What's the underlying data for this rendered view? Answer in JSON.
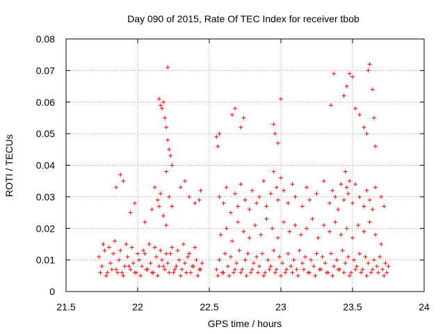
{
  "chart_data": {
    "type": "scatter",
    "title": "Day 090 of 2015, Rate Of TEC Index for receiver tbob",
    "xlabel": "GPS time / hours",
    "ylabel": "ROTI / TECUs",
    "xlim": [
      21.5,
      24
    ],
    "ylim": [
      0,
      0.08
    ],
    "x_ticks": [
      21.5,
      22,
      22.5,
      23,
      23.5,
      24
    ],
    "x_tick_labels": [
      "21.5",
      "22",
      "22.5",
      "23",
      "23.5",
      "24"
    ],
    "y_ticks": [
      0,
      0.01,
      0.02,
      0.03,
      0.04,
      0.05,
      0.06,
      0.07,
      0.08
    ],
    "y_tick_labels": [
      "0",
      "0.01",
      "0.02",
      "0.03",
      "0.04",
      "0.05",
      "0.06",
      "0.07",
      "0.08"
    ],
    "grid": true,
    "marker": "+",
    "marker_color": "#ff0000",
    "series": [
      {
        "name": "ROTI",
        "x": [
          21.73,
          21.75,
          21.77,
          21.79,
          21.81,
          21.83,
          21.85,
          21.87,
          21.89,
          21.91,
          21.93,
          21.95,
          21.97,
          21.99,
          22.01,
          22.03,
          22.05,
          22.07,
          22.09,
          22.11,
          22.13,
          22.15,
          22.17,
          22.19,
          22.21,
          22.23,
          22.25,
          22.27,
          22.29,
          22.31,
          22.33,
          22.35,
          22.37,
          22.39,
          22.41,
          22.43,
          22.45,
          21.74,
          21.78,
          21.82,
          21.86,
          21.9,
          21.94,
          21.98,
          22.02,
          22.06,
          22.1,
          22.14,
          22.18,
          22.22,
          22.26,
          22.3,
          22.34,
          22.38,
          22.42,
          22.44,
          21.76,
          21.8,
          21.84,
          21.88,
          21.92,
          21.96,
          22.0,
          22.04,
          22.08,
          22.12,
          22.16,
          22.2,
          22.24,
          22.28,
          22.32,
          22.36,
          22.4,
          21.85,
          21.88,
          21.9,
          21.95,
          21.98,
          22.05,
          22.1,
          22.12,
          22.14,
          22.15,
          22.16,
          22.18,
          22.2,
          22.22,
          22.24,
          22.3,
          22.33,
          22.36,
          22.4,
          22.43,
          22.44,
          22.15,
          22.16,
          22.17,
          22.18,
          22.19,
          22.2,
          22.21,
          22.22,
          22.23,
          22.24,
          22.2,
          22.21,
          22.55,
          22.57,
          22.59,
          22.61,
          22.63,
          22.65,
          22.67,
          22.69,
          22.71,
          22.73,
          22.75,
          22.77,
          22.79,
          22.81,
          22.83,
          22.85,
          22.87,
          22.89,
          22.91,
          22.93,
          22.95,
          22.97,
          22.99,
          23.01,
          23.03,
          23.05,
          23.07,
          23.09,
          23.11,
          23.13,
          23.15,
          23.17,
          23.19,
          23.21,
          23.23,
          23.25,
          23.27,
          23.29,
          23.31,
          23.33,
          23.35,
          23.37,
          23.39,
          23.41,
          23.43,
          23.45,
          23.47,
          23.49,
          23.51,
          23.53,
          23.55,
          23.57,
          23.59,
          23.61,
          23.63,
          23.65,
          23.67,
          23.69,
          23.71,
          23.73,
          23.75,
          22.56,
          22.6,
          22.64,
          22.68,
          22.72,
          22.76,
          22.8,
          22.84,
          22.88,
          22.92,
          22.96,
          23.0,
          23.04,
          23.08,
          23.12,
          23.16,
          23.2,
          23.24,
          23.28,
          23.32,
          23.36,
          23.4,
          23.44,
          23.48,
          23.52,
          23.56,
          23.6,
          23.64,
          23.68,
          23.72,
          23.74,
          22.58,
          22.62,
          22.66,
          22.7,
          22.74,
          22.78,
          22.82,
          22.86,
          22.9,
          22.94,
          22.98,
          23.02,
          23.06,
          23.1,
          23.14,
          23.18,
          23.22,
          23.26,
          23.3,
          23.34,
          23.38,
          23.42,
          23.46,
          23.5,
          23.54,
          23.58,
          23.62,
          23.66,
          23.7,
          22.57,
          22.6,
          22.62,
          22.65,
          22.68,
          22.7,
          22.72,
          22.75,
          22.78,
          22.8,
          22.83,
          22.85,
          22.88,
          22.9,
          22.93,
          22.95,
          22.97,
          22.98,
          23.0,
          23.02,
          23.05,
          23.08,
          23.1,
          23.15,
          23.18,
          23.2,
          23.25,
          23.3,
          23.34,
          23.36,
          23.38,
          23.4,
          23.42,
          23.44,
          23.45,
          23.46,
          23.47,
          23.48,
          23.5,
          23.52,
          23.55,
          23.58,
          23.6,
          23.62,
          23.64,
          23.66,
          23.7,
          23.72,
          22.55,
          22.56,
          22.57,
          22.66,
          22.68,
          22.72,
          22.74,
          22.95,
          22.96,
          22.98,
          23.0,
          23.35,
          23.37,
          23.44,
          23.46,
          23.48,
          23.5,
          23.52,
          23.55,
          23.58,
          23.6,
          23.61,
          23.62,
          23.64,
          23.65,
          23.66
        ],
        "y": [
          0.011,
          0.008,
          0.013,
          0.006,
          0.009,
          0.012,
          0.007,
          0.01,
          0.006,
          0.008,
          0.011,
          0.007,
          0.009,
          0.006,
          0.01,
          0.008,
          0.012,
          0.007,
          0.009,
          0.006,
          0.011,
          0.008,
          0.01,
          0.007,
          0.009,
          0.012,
          0.006,
          0.008,
          0.01,
          0.007,
          0.009,
          0.011,
          0.006,
          0.008,
          0.01,
          0.007,
          0.009,
          0.006,
          0.005,
          0.007,
          0.006,
          0.005,
          0.008,
          0.006,
          0.005,
          0.007,
          0.006,
          0.005,
          0.008,
          0.006,
          0.007,
          0.005,
          0.006,
          0.008,
          0.005,
          0.007,
          0.015,
          0.014,
          0.016,
          0.013,
          0.015,
          0.014,
          0.012,
          0.013,
          0.015,
          0.014,
          0.013,
          0.012,
          0.014,
          0.013,
          0.015,
          0.012,
          0.014,
          0.033,
          0.037,
          0.035,
          0.025,
          0.028,
          0.022,
          0.026,
          0.033,
          0.029,
          0.027,
          0.031,
          0.024,
          0.021,
          0.03,
          0.027,
          0.033,
          0.035,
          0.03,
          0.028,
          0.029,
          0.032,
          0.061,
          0.059,
          0.058,
          0.06,
          0.055,
          0.052,
          0.048,
          0.045,
          0.043,
          0.04,
          0.038,
          0.071,
          0.007,
          0.01,
          0.006,
          0.012,
          0.008,
          0.011,
          0.006,
          0.009,
          0.013,
          0.007,
          0.01,
          0.012,
          0.006,
          0.009,
          0.011,
          0.008,
          0.012,
          0.006,
          0.01,
          0.008,
          0.013,
          0.007,
          0.011,
          0.009,
          0.006,
          0.012,
          0.008,
          0.01,
          0.007,
          0.013,
          0.009,
          0.011,
          0.006,
          0.01,
          0.008,
          0.012,
          0.007,
          0.011,
          0.009,
          0.006,
          0.012,
          0.008,
          0.01,
          0.007,
          0.013,
          0.009,
          0.011,
          0.006,
          0.01,
          0.008,
          0.012,
          0.007,
          0.011,
          0.009,
          0.006,
          0.01,
          0.008,
          0.011,
          0.007,
          0.009,
          0.008,
          0.005,
          0.006,
          0.005,
          0.007,
          0.006,
          0.005,
          0.007,
          0.006,
          0.005,
          0.007,
          0.006,
          0.005,
          0.007,
          0.006,
          0.005,
          0.007,
          0.006,
          0.005,
          0.007,
          0.006,
          0.005,
          0.007,
          0.006,
          0.005,
          0.007,
          0.006,
          0.005,
          0.007,
          0.006,
          0.005,
          0.006,
          0.018,
          0.02,
          0.016,
          0.022,
          0.019,
          0.017,
          0.021,
          0.018,
          0.023,
          0.02,
          0.017,
          0.022,
          0.019,
          0.021,
          0.018,
          0.02,
          0.023,
          0.017,
          0.021,
          0.019,
          0.022,
          0.018,
          0.02,
          0.017,
          0.021,
          0.019,
          0.022,
          0.018,
          0.015,
          0.03,
          0.028,
          0.033,
          0.025,
          0.031,
          0.027,
          0.034,
          0.029,
          0.026,
          0.032,
          0.028,
          0.03,
          0.035,
          0.027,
          0.031,
          0.038,
          0.033,
          0.029,
          0.036,
          0.032,
          0.028,
          0.034,
          0.03,
          0.027,
          0.033,
          0.029,
          0.031,
          0.035,
          0.028,
          0.032,
          0.03,
          0.026,
          0.034,
          0.029,
          0.038,
          0.033,
          0.031,
          0.035,
          0.028,
          0.034,
          0.03,
          0.027,
          0.032,
          0.029,
          0.026,
          0.033,
          0.03,
          0.027,
          0.049,
          0.046,
          0.05,
          0.056,
          0.058,
          0.052,
          0.055,
          0.053,
          0.05,
          0.047,
          0.061,
          0.059,
          0.069,
          0.062,
          0.065,
          0.069,
          0.068,
          0.058,
          0.056,
          0.052,
          0.05,
          0.07,
          0.072,
          0.064,
          0.055,
          0.046
        ]
      }
    ]
  }
}
